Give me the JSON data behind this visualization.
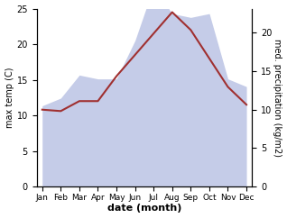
{
  "months": [
    "Jan",
    "Feb",
    "Mar",
    "Apr",
    "May",
    "Jun",
    "Jul",
    "Aug",
    "Sep",
    "Oct",
    "Nov",
    "Dec"
  ],
  "max_temp": [
    10.8,
    10.6,
    12.0,
    12.0,
    15.5,
    18.5,
    21.5,
    24.5,
    22.0,
    18.0,
    14.0,
    11.5
  ],
  "precipitation": [
    10.5,
    11.5,
    14.5,
    14.0,
    14.0,
    19.0,
    26.0,
    22.5,
    22.0,
    22.5,
    14.0,
    13.0
  ],
  "temp_color": "#a03030",
  "precip_fill_color": "#c5cce8",
  "temp_ylim": [
    0,
    25
  ],
  "precip_ylim": [
    0,
    23.15
  ],
  "xlabel": "date (month)",
  "ylabel_left": "max temp (C)",
  "ylabel_right": "med. precipitation (kg/m2)",
  "background_color": "#ffffff",
  "figsize": [
    3.18,
    2.42
  ],
  "dpi": 100
}
